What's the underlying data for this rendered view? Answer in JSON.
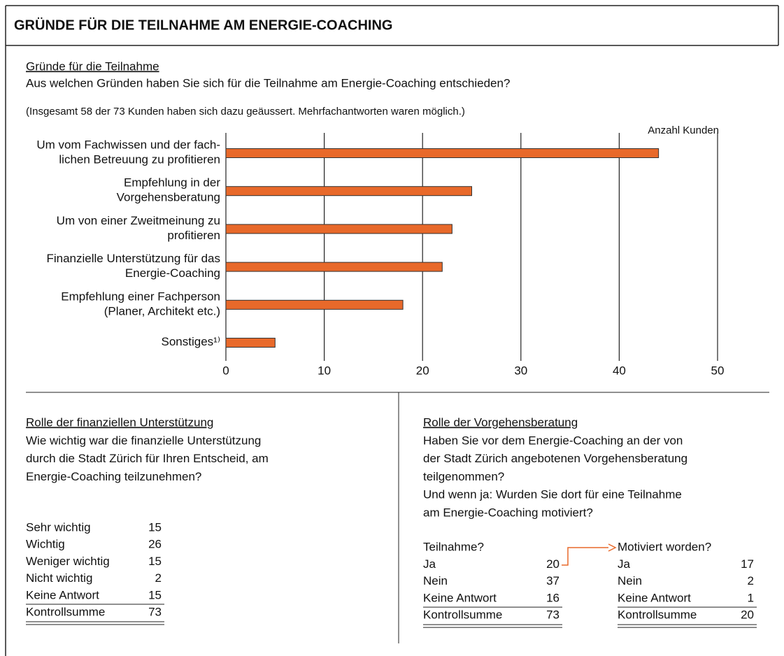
{
  "header": {
    "title": "GRÜNDE FÜR DIE TEILNAHME AM ENERGIE-COACHING"
  },
  "chart_data": {
    "type": "barh",
    "heading": "Gründe für die Teilnahme",
    "question": "Aus welchen Gründen haben Sie sich für die Teilnahme am Energie-Coaching entschieden?",
    "note": "(Insgesamt 58 der 73 Kunden haben sich dazu geäussert. Mehrfachantworten waren möglich.)",
    "x_label": "Anzahl Kunden",
    "categories": [
      "Um vom Fachwissen und der fach-\nlichen Betreuung zu profitieren",
      "Empfehlung in der\nVorgehensberatung",
      "Um von einer Zweitmeinung zu\nprofitieren",
      "Finanzielle Unterstützung für das\nEnergie-Coaching",
      "Empfehlung einer Fachperson\n(Planer, Architekt etc.)",
      "Sonstiges¹⁾"
    ],
    "values": [
      44,
      25,
      23,
      22,
      18,
      5
    ],
    "color": "#e8692a",
    "xlim": [
      0,
      50
    ],
    "xticks": [
      0,
      10,
      20,
      30,
      40,
      50
    ],
    "grid": true
  },
  "left": {
    "heading": "Rolle der finanziellen Unterstützung",
    "question": [
      "Wie wichtig war die finanzielle Unterstützung",
      "durch die Stadt Zürich für Ihren Entscheid, am",
      "Energie-Coaching teilzunehmen?"
    ],
    "rows": [
      [
        "Sehr wichtig",
        15
      ],
      [
        "Wichtig",
        26
      ],
      [
        "Weniger wichtig",
        15
      ],
      [
        "Nicht wichtig",
        2
      ],
      [
        "Keine Antwort",
        15
      ]
    ],
    "total": [
      "Kontrollsumme",
      73
    ]
  },
  "right": {
    "heading": "Rolle der Vorgehensberatung",
    "question": [
      "Haben Sie vor dem Energie-Coaching an der von",
      "der Stadt Zürich angebotenen Vorgehensberatung",
      "teilgenommen?",
      "Und wenn ja: Wurden Sie dort für eine Teilnahme",
      "am Energie-Coaching motiviert?"
    ],
    "tables": [
      {
        "header": "Teilnahme?",
        "rows": [
          [
            "Ja",
            20
          ],
          [
            "Nein",
            37
          ],
          [
            "Keine Antwort",
            16
          ]
        ],
        "total": [
          "Kontrollsumme",
          73
        ]
      },
      {
        "header": "Motiviert worden?",
        "rows": [
          [
            "Ja",
            17
          ],
          [
            "Nein",
            2
          ],
          [
            "Keine Antwort",
            1
          ]
        ],
        "total": [
          "Kontrollsumme",
          20
        ]
      }
    ]
  }
}
